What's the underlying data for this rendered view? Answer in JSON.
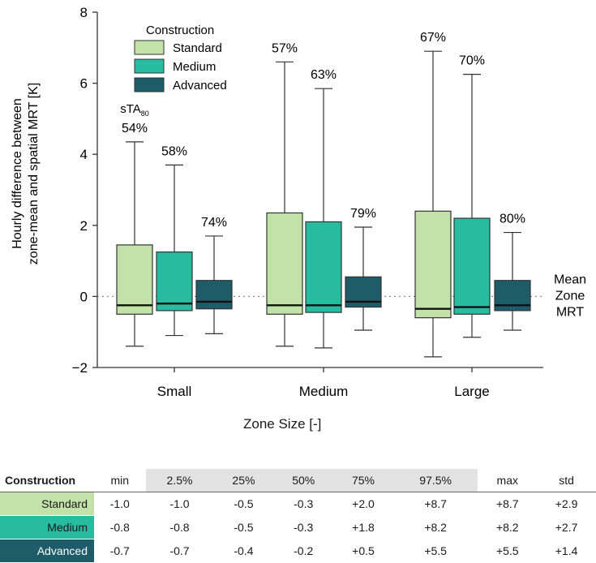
{
  "colors": {
    "Standard": "#c3e2a9",
    "Medium": "#27bba0",
    "Advanced": "#1f5c6a",
    "axis": "#333333",
    "mean_line": "#888888"
  },
  "chart_data": {
    "type": "box",
    "ylabel_line1": "Hourly difference between",
    "ylabel_line2": "zone-mean and spatial MRT [K]",
    "xlabel_main": "Zone Size",
    "xlabel_unit": "[-]",
    "ylim": [
      -2,
      8
    ],
    "yticks": [
      -2,
      0,
      2,
      4,
      6,
      8
    ],
    "ytick_labels": [
      "−2",
      "0",
      "2",
      "4",
      "6",
      "8"
    ],
    "categories": [
      "Small",
      "Medium",
      "Large"
    ],
    "legend_title": "Construction",
    "legend_position": "top-left",
    "reference_line": {
      "y": 0,
      "label_lines": [
        "Mean",
        "Zone",
        "MRT"
      ]
    },
    "sta_label_main": "sTA",
    "sta_label_sub": "80",
    "series": [
      {
        "name": "Standard",
        "boxes": [
          {
            "min": -1.4,
            "q1": -0.5,
            "median": -0.25,
            "q3": 1.45,
            "max": 4.35,
            "label": "54%"
          },
          {
            "min": -1.4,
            "q1": -0.5,
            "median": -0.25,
            "q3": 2.35,
            "max": 6.6,
            "label": "57%"
          },
          {
            "min": -1.7,
            "q1": -0.6,
            "median": -0.35,
            "q3": 2.4,
            "max": 6.9,
            "label": "67%"
          }
        ]
      },
      {
        "name": "Medium",
        "boxes": [
          {
            "min": -1.1,
            "q1": -0.4,
            "median": -0.2,
            "q3": 1.25,
            "max": 3.7,
            "label": "58%"
          },
          {
            "min": -1.45,
            "q1": -0.45,
            "median": -0.25,
            "q3": 2.1,
            "max": 5.85,
            "label": "63%"
          },
          {
            "min": -1.15,
            "q1": -0.5,
            "median": -0.3,
            "q3": 2.2,
            "max": 6.25,
            "label": "70%"
          }
        ]
      },
      {
        "name": "Advanced",
        "boxes": [
          {
            "min": -1.05,
            "q1": -0.35,
            "median": -0.15,
            "q3": 0.45,
            "max": 1.7,
            "label": "74%"
          },
          {
            "min": -0.95,
            "q1": -0.3,
            "median": -0.15,
            "q3": 0.55,
            "max": 1.95,
            "label": "79%"
          },
          {
            "min": -0.95,
            "q1": -0.4,
            "median": -0.25,
            "q3": 0.45,
            "max": 1.8,
            "label": "80%"
          }
        ]
      }
    ]
  },
  "table": {
    "header": [
      "Construction",
      "min",
      "2.5%",
      "25%",
      "50%",
      "75%",
      "97.5%",
      "max",
      "std"
    ],
    "rows": [
      {
        "label": "Standard",
        "values": [
          "-1.0",
          "-1.0",
          "-0.5",
          "-0.3",
          "+2.0",
          "+8.7",
          "+8.7",
          "+2.9"
        ]
      },
      {
        "label": "Medium",
        "values": [
          "-0.8",
          "-0.8",
          "-0.5",
          "-0.3",
          "+1.8",
          "+8.2",
          "+8.2",
          "+2.7"
        ]
      },
      {
        "label": "Advanced",
        "values": [
          "-0.7",
          "-0.7",
          "-0.4",
          "-0.2",
          "+0.5",
          "+5.5",
          "+5.5",
          "+1.4"
        ]
      }
    ]
  }
}
